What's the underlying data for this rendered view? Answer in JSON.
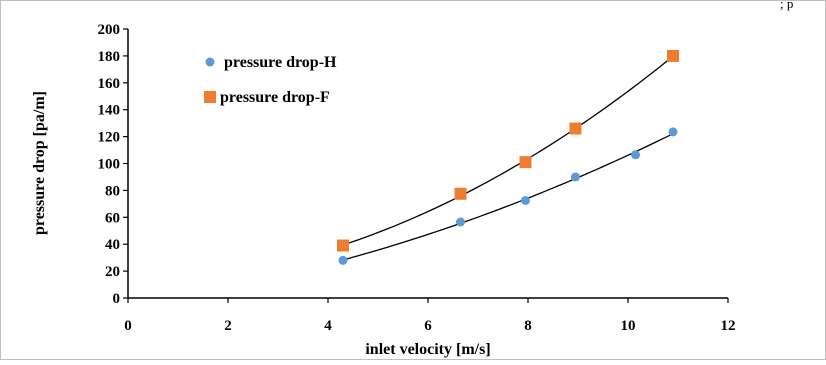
{
  "chart_data": {
    "type": "scatter",
    "title": "",
    "xlabel": "inlet velocity [m/s]",
    "ylabel": "pressure drop [pa/m]",
    "xlim": [
      0,
      12
    ],
    "ylim": [
      0,
      200
    ],
    "x_ticks": [
      "0",
      "2",
      "4",
      "6",
      "8",
      "10",
      "12"
    ],
    "y_ticks": [
      "0",
      "20",
      "40",
      "60",
      "80",
      "100",
      "120",
      "140",
      "160",
      "180",
      "200"
    ],
    "grid": false,
    "legend_position": "top-left",
    "trendline": "polynomial",
    "series": [
      {
        "name": "pressure drop-H",
        "marker": "circle",
        "color": "#5B9BD5",
        "x": [
          4.3,
          6.65,
          7.95,
          8.95,
          10.15,
          10.9
        ],
        "y": [
          28,
          56.5,
          72.5,
          90,
          106.5,
          123.5
        ]
      },
      {
        "name": "pressure drop-F",
        "marker": "square",
        "color": "#ED7D31",
        "x": [
          4.3,
          6.65,
          7.95,
          8.95,
          10.9
        ],
        "y": [
          39,
          77.5,
          101,
          126,
          180
        ]
      }
    ],
    "top_right_fragment": "; p"
  }
}
